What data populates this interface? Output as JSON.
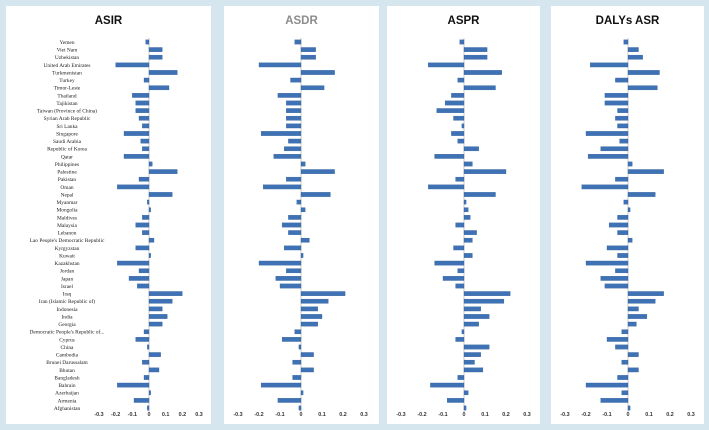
{
  "chart_data": {
    "type": "bar",
    "orientation": "horizontal",
    "categories": [
      "Yemen",
      "Viet Nam",
      "Uzbekistan",
      "United Arab Emirates",
      "Turkmenistan",
      "Turkey",
      "Timor-Leste",
      "Thailand",
      "Tajikistan",
      "Taiwan (Province of China)",
      "Syrian Arab Republic",
      "Sri Lanka",
      "Singapore",
      "Saudi Arabia",
      "Republic of Korea",
      "Qatar",
      "Philippines",
      "Palestine",
      "Pakistan",
      "Oman",
      "Nepal",
      "Myanmar",
      "Mongolia",
      "Maldives",
      "Malaysia",
      "Lebanon",
      "Lao People's Democratic Republic",
      "Kyrgyzstan",
      "Kuwait",
      "Kazakhstan",
      "Jordan",
      "Japan",
      "Israel",
      "Iraq",
      "Iran (Islamic Republic of)",
      "Indonesia",
      "India",
      "Georgia",
      "Democratic People's Republic of...",
      "Cyprus",
      "China",
      "Cambodia",
      "Brunei Darussalam",
      "Bhutan",
      "Bangladesh",
      "Bahrain",
      "Azerbaijan",
      "Armenia",
      "Afghanistan"
    ],
    "tick_values": [
      -0.3,
      -0.2,
      -0.1,
      0,
      0.1,
      0.2,
      0.3
    ],
    "tick_labels": [
      "-0.3",
      "-0.2",
      "-0.1",
      "0",
      "0.1",
      "0.2",
      "0.3"
    ],
    "xlim": [
      -0.3,
      0.3
    ],
    "bar_color": "#3f72b5",
    "series": [
      {
        "name": "ASIR",
        "title_color": "#111111",
        "values": [
          -0.02,
          0.08,
          0.08,
          -0.2,
          0.17,
          -0.03,
          0.12,
          -0.1,
          -0.08,
          -0.08,
          -0.06,
          -0.04,
          -0.15,
          -0.05,
          -0.04,
          -0.15,
          0.02,
          0.17,
          -0.06,
          -0.19,
          0.14,
          -0.01,
          0.01,
          -0.04,
          -0.08,
          -0.04,
          0.03,
          -0.08,
          0.01,
          -0.19,
          -0.06,
          -0.12,
          -0.07,
          0.2,
          0.14,
          0.08,
          0.11,
          0.08,
          -0.03,
          -0.08,
          -0.01,
          0.07,
          -0.04,
          0.06,
          -0.03,
          -0.19,
          0.01,
          -0.09,
          -0.01
        ]
      },
      {
        "name": "ASDR",
        "title_color": "#8c8c8c",
        "values": [
          -0.03,
          0.07,
          0.07,
          -0.2,
          0.16,
          -0.05,
          0.11,
          -0.11,
          -0.07,
          -0.07,
          -0.07,
          -0.07,
          -0.19,
          -0.06,
          -0.08,
          -0.13,
          0.02,
          0.16,
          -0.07,
          -0.18,
          0.14,
          -0.02,
          0.02,
          -0.06,
          -0.09,
          -0.06,
          0.04,
          -0.08,
          0.01,
          -0.2,
          -0.07,
          -0.12,
          -0.1,
          0.21,
          0.13,
          0.08,
          0.1,
          0.08,
          -0.03,
          -0.09,
          -0.01,
          0.06,
          -0.04,
          0.06,
          -0.04,
          -0.19,
          0.01,
          -0.11,
          -0.01
        ]
      },
      {
        "name": "ASPR",
        "title_color": "#111111",
        "values": [
          -0.02,
          0.11,
          0.11,
          -0.17,
          0.18,
          -0.03,
          0.15,
          -0.06,
          -0.09,
          -0.13,
          -0.05,
          -0.01,
          -0.06,
          -0.03,
          0.07,
          -0.14,
          0.04,
          0.2,
          -0.04,
          -0.17,
          0.15,
          0.01,
          0.02,
          0.03,
          -0.04,
          0.06,
          0.04,
          -0.05,
          0.04,
          -0.14,
          -0.03,
          -0.1,
          -0.04,
          0.22,
          0.19,
          0.08,
          0.12,
          0.07,
          -0.01,
          -0.04,
          0.12,
          0.08,
          0.05,
          0.09,
          -0.03,
          -0.16,
          0.02,
          -0.08,
          0.01
        ]
      },
      {
        "name": "DALYs ASR",
        "title_color": "#111111",
        "values": [
          -0.02,
          0.05,
          0.07,
          -0.18,
          0.15,
          -0.06,
          0.14,
          -0.11,
          -0.11,
          -0.05,
          -0.06,
          -0.05,
          -0.2,
          -0.04,
          -0.13,
          -0.19,
          0.02,
          0.17,
          -0.06,
          -0.22,
          0.13,
          -0.02,
          0.01,
          -0.05,
          -0.09,
          -0.05,
          0.02,
          -0.1,
          -0.05,
          -0.2,
          -0.06,
          -0.13,
          -0.11,
          0.17,
          0.13,
          0.05,
          0.09,
          0.04,
          -0.03,
          -0.1,
          -0.06,
          0.05,
          -0.03,
          0.05,
          -0.05,
          -0.2,
          -0.03,
          -0.13,
          0.01
        ]
      }
    ]
  }
}
